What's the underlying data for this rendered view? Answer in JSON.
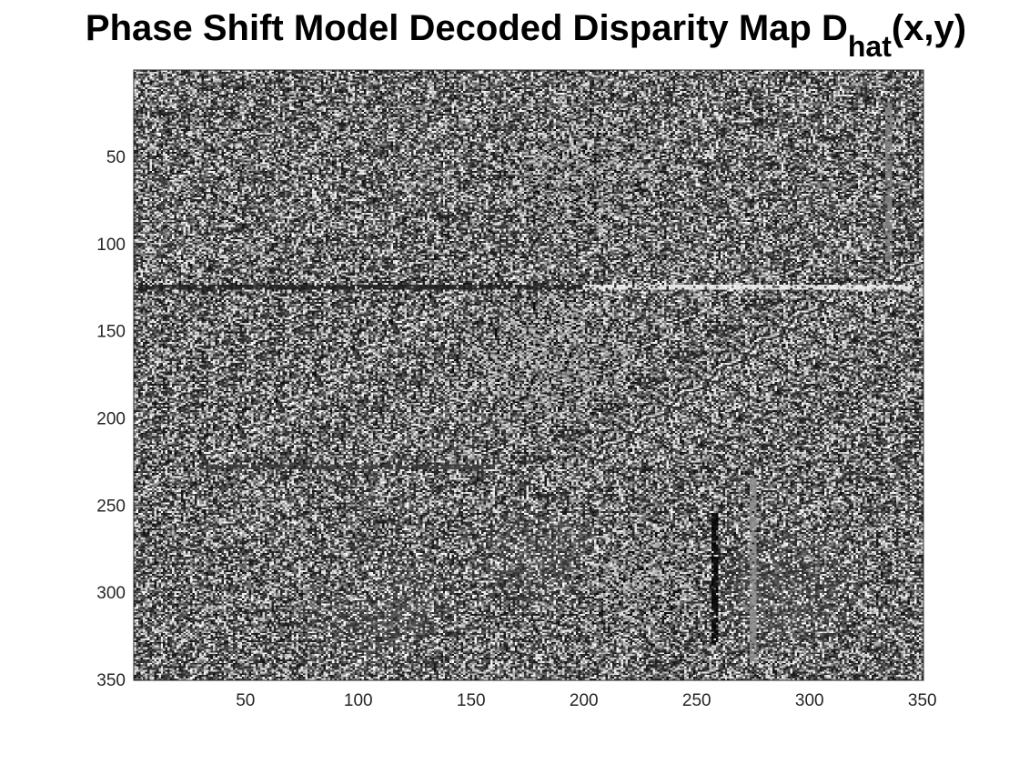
{
  "chart_data": {
    "type": "heatmap",
    "colormap": "gray",
    "title": {
      "main": "Phase Shift Model Decoded Disparity Map D",
      "subscript": "hat",
      "suffix": "(x,y)"
    },
    "xlabel": "",
    "ylabel": "",
    "xlim": [
      1,
      350
    ],
    "ylim": [
      1,
      350
    ],
    "y_reversed": true,
    "x_ticks": [
      "50",
      "100",
      "150",
      "200",
      "250",
      "300",
      "350"
    ],
    "y_ticks": [
      "50",
      "100",
      "150",
      "200",
      "250",
      "300",
      "350"
    ],
    "grid": false,
    "legend": "none",
    "features": [
      {
        "kind": "horizontal-streak",
        "y": 125,
        "x_from": 1,
        "x_to": 245,
        "value": 0.15
      },
      {
        "kind": "horizontal-streak",
        "y": 125,
        "x_from": 200,
        "x_to": 345,
        "value": 0.9
      },
      {
        "kind": "horizontal-streak",
        "y": 228,
        "x_from": 30,
        "x_to": 160,
        "value": 0.25
      },
      {
        "kind": "vertical-streak",
        "x": 258,
        "y_from": 255,
        "y_to": 330,
        "value": 0.05
      },
      {
        "kind": "vertical-streak",
        "x": 275,
        "y_from": 235,
        "y_to": 340,
        "value": 0.55
      },
      {
        "kind": "vertical-streak",
        "x": 335,
        "y_from": 20,
        "y_to": 110,
        "value": 0.5
      },
      {
        "kind": "dark-region",
        "cx": 185,
        "cy": 165,
        "r": 45
      },
      {
        "kind": "dark-region",
        "cx": 225,
        "cy": 290,
        "r": 35
      },
      {
        "kind": "dark-region",
        "cx": 100,
        "cy": 295,
        "r": 18
      },
      {
        "kind": "dark-region",
        "cx": 200,
        "cy": 60,
        "r": 40
      },
      {
        "kind": "bright-region",
        "cx": 110,
        "cy": 310,
        "r": 40
      },
      {
        "kind": "bright-region",
        "cx": 180,
        "cy": 280,
        "r": 35
      },
      {
        "kind": "bright-region",
        "cx": 290,
        "cy": 300,
        "r": 40
      }
    ]
  }
}
